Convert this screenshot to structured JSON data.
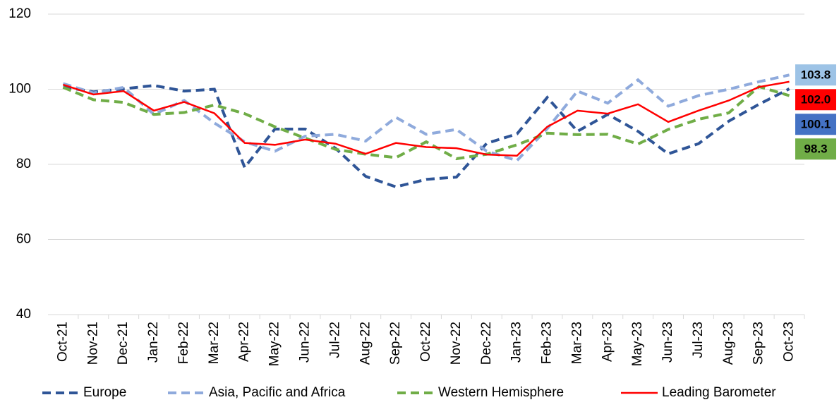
{
  "chart_data": {
    "type": "line",
    "categories": [
      "Oct-21",
      "Nov-21",
      "Dec-21",
      "Jan-22",
      "Feb-22",
      "Mar-22",
      "Apr-22",
      "May-22",
      "Jun-22",
      "Jul-22",
      "Aug-22",
      "Sep-22",
      "Oct-22",
      "Nov-22",
      "Dec-22",
      "Jan-23",
      "Feb-23",
      "Mar-23",
      "Apr-23",
      "May-23",
      "Jun-23",
      "Jul-23",
      "Aug-23",
      "Sep-23",
      "Oct-23"
    ],
    "series": [
      {
        "name": "Europe",
        "color": "#2f5597",
        "dashed": true,
        "label_color": "#4472c4",
        "values": [
          100.6,
          99.3,
          100.1,
          101,
          99.5,
          100,
          79.2,
          89.4,
          89.4,
          84.3,
          76.8,
          74,
          76,
          76.6,
          85.6,
          88.1,
          97.8,
          88.8,
          93.3,
          88.8,
          82.8,
          85.5,
          91.5,
          96,
          100.1
        ],
        "value_labels": [
          null,
          null,
          null,
          null,
          null,
          null,
          null,
          null,
          null,
          null,
          null,
          null,
          null,
          null,
          null,
          null,
          null,
          null,
          null,
          null,
          null,
          null,
          null,
          null,
          "100.1"
        ]
      },
      {
        "name": "Asia, Pacific and Africa",
        "color": "#8faadc",
        "dashed": true,
        "label_color": "#9dc3e6",
        "values": [
          101.5,
          99,
          100.5,
          93.3,
          97,
          91,
          86,
          83.5,
          87.5,
          88,
          86.2,
          92.5,
          88,
          89.3,
          83.5,
          81,
          89.5,
          99.5,
          96.3,
          102.5,
          95.5,
          98.3,
          100,
          102,
          103.8
        ],
        "value_labels": [
          null,
          null,
          null,
          null,
          null,
          null,
          null,
          null,
          null,
          null,
          null,
          null,
          null,
          null,
          null,
          null,
          null,
          null,
          null,
          null,
          null,
          null,
          null,
          null,
          "103.8"
        ]
      },
      {
        "name": "Western Hemisphere",
        "color": "#70ad47",
        "dashed": true,
        "label_color": "#70ad47",
        "values": [
          100.5,
          97.2,
          96.5,
          93.3,
          93.8,
          95.8,
          93.5,
          90,
          87,
          84,
          82.7,
          81.8,
          86,
          81.5,
          82.7,
          85.2,
          88.3,
          87.9,
          88,
          85.4,
          89.3,
          92,
          93.7,
          100.7,
          98.3
        ],
        "value_labels": [
          null,
          null,
          null,
          null,
          null,
          null,
          null,
          null,
          null,
          null,
          null,
          null,
          null,
          null,
          null,
          null,
          null,
          null,
          null,
          null,
          null,
          null,
          null,
          null,
          "98.3"
        ]
      },
      {
        "name": "Leading Barometer",
        "color": "#ff0000",
        "dashed": false,
        "label_color": "#ff0000",
        "values": [
          101.2,
          98.6,
          99.5,
          94.3,
          96.6,
          93.6,
          85.7,
          85.2,
          86.6,
          85.5,
          82.8,
          85.7,
          84.6,
          84.3,
          82.6,
          82.3,
          90,
          94.3,
          93.5,
          96,
          91.3,
          94.3,
          97,
          100.6,
          102
        ],
        "value_labels": [
          null,
          null,
          null,
          null,
          null,
          null,
          null,
          null,
          null,
          null,
          null,
          null,
          null,
          null,
          null,
          null,
          null,
          null,
          null,
          null,
          null,
          null,
          null,
          null,
          "102.0"
        ]
      }
    ],
    "ylim": [
      40,
      120
    ],
    "yticks": [
      40,
      60,
      80,
      100,
      120
    ],
    "grid": true,
    "legend": "bottom"
  }
}
